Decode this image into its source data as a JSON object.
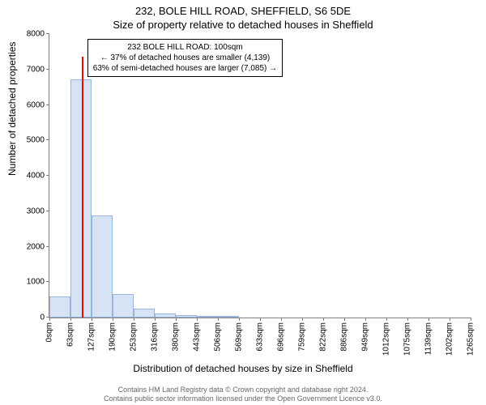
{
  "titles": {
    "main": "232, BOLE HILL ROAD, SHEFFIELD, S6 5DE",
    "sub": "Size of property relative to detached houses in Sheffield"
  },
  "chart": {
    "type": "histogram",
    "background_color": "#ffffff",
    "bar_fill": "#d6e3f5",
    "bar_stroke": "#9ab5db",
    "marker_color": "#ff0000",
    "ylabel": "Number of detached properties",
    "xlabel": "Distribution of detached houses by size in Sheffield",
    "ylim": [
      0,
      8000
    ],
    "ytick_step": 1000,
    "y_ticks": [
      0,
      1000,
      2000,
      3000,
      4000,
      5000,
      6000,
      7000,
      8000
    ],
    "x_tick_labels": [
      "0sqm",
      "63sqm",
      "127sqm",
      "190sqm",
      "253sqm",
      "316sqm",
      "380sqm",
      "443sqm",
      "506sqm",
      "569sqm",
      "633sqm",
      "696sqm",
      "759sqm",
      "822sqm",
      "886sqm",
      "949sqm",
      "1012sqm",
      "1075sqm",
      "1139sqm",
      "1202sqm",
      "1265sqm"
    ],
    "values": [
      590,
      6720,
      2870,
      660,
      250,
      120,
      60,
      50,
      40,
      0,
      0,
      0,
      0,
      0,
      0,
      0,
      0,
      0,
      0,
      0
    ],
    "marker_bin_left_edge": 1,
    "marker_fraction_in_bin": 0.58,
    "marker_height": 7350
  },
  "annotation": {
    "line1": "232 BOLE HILL ROAD: 100sqm",
    "line2": "← 37% of detached houses are smaller (4,139)",
    "line3": "63% of semi-detached houses are larger (7,085) →"
  },
  "footer": {
    "line1": "Contains HM Land Registry data © Crown copyright and database right 2024.",
    "line2": "Contains public sector information licensed under the Open Government Licence v3.0."
  }
}
